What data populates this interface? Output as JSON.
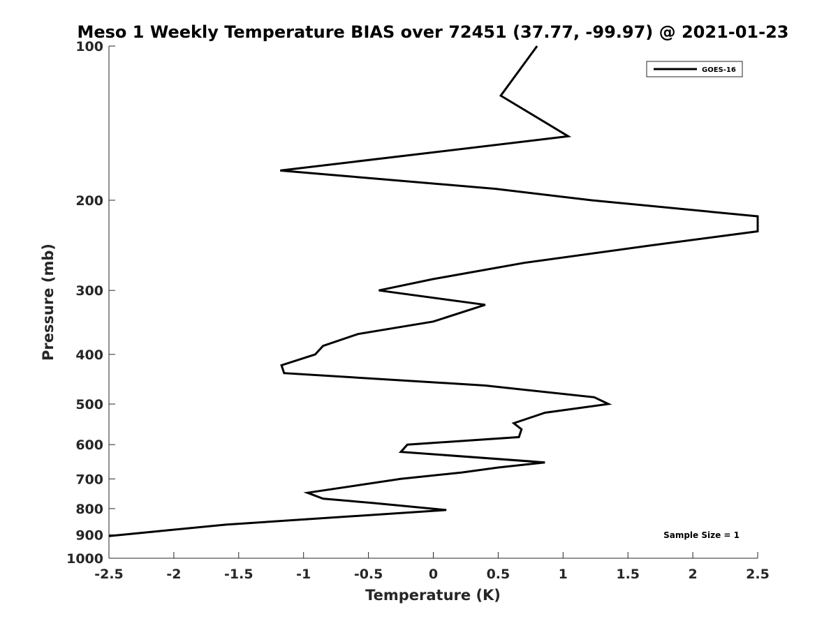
{
  "chart_data": {
    "type": "line",
    "title": "Meso 1 Weekly Temperature BIAS over 72451 (37.77, -99.97) @ 2021-01-23",
    "xlabel": "Temperature (K)",
    "ylabel": "Pressure (mb)",
    "xlim": [
      -2.5,
      2.5
    ],
    "ylim": [
      100,
      1000
    ],
    "y_scale": "log",
    "y_reversed": true,
    "grid": false,
    "legend_position": "top-right",
    "x_ticks": [
      -2.5,
      -2,
      -1.5,
      -1,
      -0.5,
      0,
      0.5,
      1,
      1.5,
      2,
      2.5
    ],
    "x_tick_labels": [
      "-2.5",
      "-2",
      "-1.5",
      "-1",
      "-0.5",
      "0",
      "0.5",
      "1",
      "1.5",
      "2",
      "2.5"
    ],
    "y_ticks": [
      100,
      200,
      300,
      400,
      500,
      600,
      700,
      800,
      900,
      1000
    ],
    "y_tick_labels": [
      "100",
      "200",
      "300",
      "400",
      "500",
      "600",
      "700",
      "800",
      "900",
      "1000"
    ],
    "series": [
      {
        "name": "GOES-16",
        "color": "#000000",
        "points": [
          {
            "x": 0.8,
            "y": 100
          },
          {
            "x": 0.52,
            "y": 125
          },
          {
            "x": 1.04,
            "y": 150
          },
          {
            "x": -1.18,
            "y": 175
          },
          {
            "x": 0.48,
            "y": 190
          },
          {
            "x": 1.22,
            "y": 200
          },
          {
            "x": 2.5,
            "y": 215
          },
          {
            "x": 2.5,
            "y": 230
          },
          {
            "x": 1.68,
            "y": 245
          },
          {
            "x": 0.7,
            "y": 265
          },
          {
            "x": 0.0,
            "y": 285
          },
          {
            "x": -0.42,
            "y": 300
          },
          {
            "x": 0.4,
            "y": 320
          },
          {
            "x": 0.0,
            "y": 345
          },
          {
            "x": -0.58,
            "y": 365
          },
          {
            "x": -0.85,
            "y": 385
          },
          {
            "x": -0.91,
            "y": 400
          },
          {
            "x": -1.17,
            "y": 420
          },
          {
            "x": -1.15,
            "y": 435
          },
          {
            "x": 0.4,
            "y": 460
          },
          {
            "x": 1.24,
            "y": 485
          },
          {
            "x": 1.35,
            "y": 500
          },
          {
            "x": 0.86,
            "y": 520
          },
          {
            "x": 0.62,
            "y": 545
          },
          {
            "x": 0.68,
            "y": 560
          },
          {
            "x": 0.66,
            "y": 580
          },
          {
            "x": -0.2,
            "y": 600
          },
          {
            "x": -0.25,
            "y": 620
          },
          {
            "x": 0.86,
            "y": 650
          },
          {
            "x": 0.5,
            "y": 665
          },
          {
            "x": 0.22,
            "y": 680
          },
          {
            "x": -0.25,
            "y": 700
          },
          {
            "x": -0.97,
            "y": 745
          },
          {
            "x": -0.85,
            "y": 765
          },
          {
            "x": -0.47,
            "y": 780
          },
          {
            "x": 0.1,
            "y": 805
          },
          {
            "x": -1.6,
            "y": 860
          },
          {
            "x": -2.5,
            "y": 905
          }
        ]
      }
    ],
    "annotations": [
      {
        "text": "Sample Size = 1"
      }
    ]
  }
}
